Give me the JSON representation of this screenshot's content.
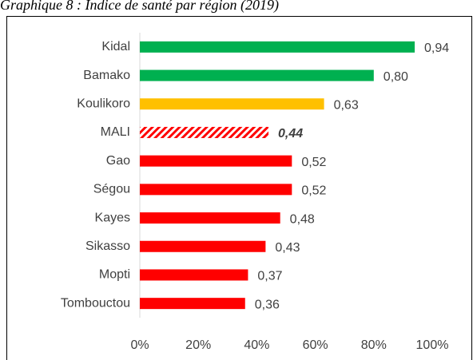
{
  "chart_data": {
    "type": "barh",
    "title": "Graphique 8 : Indice de santé par région (2019)",
    "categories": [
      "Kidal",
      "Bamako",
      "Koulikoro",
      "MALI",
      "Gao",
      "Ségou",
      "Kayes",
      "Sikasso",
      "Mopti",
      "Tombouctou"
    ],
    "values": [
      94,
      80,
      63,
      44,
      52,
      52,
      48,
      43,
      37,
      36
    ],
    "value_labels": [
      "0,94",
      "0,80",
      "0,63",
      "0,44",
      "0,52",
      "0,52",
      "0,48",
      "0,43",
      "0,37",
      "0,36"
    ],
    "colors": [
      "#00b050",
      "#00b050",
      "#ffc000",
      "#ff0000",
      "#ff0000",
      "#ff0000",
      "#ff0000",
      "#ff0000",
      "#ff0000",
      "#ff0000"
    ],
    "hatch": [
      false,
      false,
      false,
      true,
      false,
      false,
      false,
      false,
      false,
      false
    ],
    "xlim": [
      0,
      100
    ],
    "xticks": [
      {
        "value": 0,
        "label": "0%"
      },
      {
        "value": 20,
        "label": "20%"
      },
      {
        "value": 40,
        "label": "40%"
      },
      {
        "value": 60,
        "label": "60%"
      },
      {
        "value": 80,
        "label": "80%"
      },
      {
        "value": 100,
        "label": "100%"
      }
    ],
    "grid": false
  }
}
